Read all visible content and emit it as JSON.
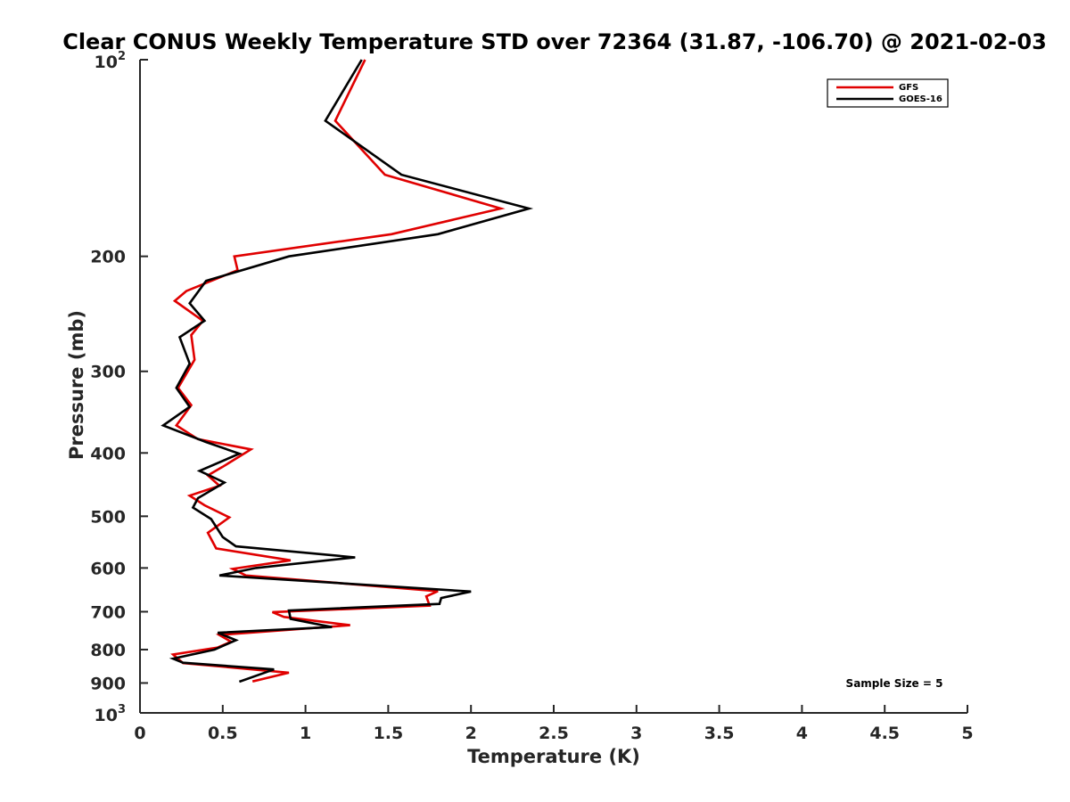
{
  "chart_data": {
    "type": "line",
    "title": "Clear CONUS Weekly Temperature STD over 72364 (31.87, -106.70) @ 2021-02-03",
    "xlabel": "Temperature (K)",
    "ylabel": "Pressure (mb)",
    "xlim": [
      0,
      5
    ],
    "ylim": [
      100,
      1000
    ],
    "y_scale": "log",
    "y_reversed": true,
    "x_ticks": [
      "0",
      "0.5",
      "1",
      "1.5",
      "2",
      "2.5",
      "3",
      "3.5",
      "4",
      "4.5",
      "5"
    ],
    "y_ticks": [
      {
        "value": 100,
        "base": "10",
        "exp": "2"
      },
      {
        "value": 200,
        "label": "200"
      },
      {
        "value": 300,
        "label": "300"
      },
      {
        "value": 400,
        "label": "400"
      },
      {
        "value": 500,
        "label": "500"
      },
      {
        "value": 600,
        "label": "600"
      },
      {
        "value": 700,
        "label": "700"
      },
      {
        "value": 800,
        "label": "800"
      },
      {
        "value": 900,
        "label": "900"
      },
      {
        "value": 1000,
        "base": "10",
        "exp": "3"
      }
    ],
    "grid": false,
    "legend_position": "top-right",
    "annotation": "Sample Size = 5",
    "series": [
      {
        "name": "GFS",
        "color": "#e00000",
        "points": [
          [
            1.36,
            100
          ],
          [
            1.18,
            124
          ],
          [
            1.48,
            150
          ],
          [
            2.18,
            169
          ],
          [
            1.52,
            185
          ],
          [
            0.57,
            200
          ],
          [
            0.59,
            210
          ],
          [
            0.28,
            226
          ],
          [
            0.21,
            234
          ],
          [
            0.38,
            251
          ],
          [
            0.31,
            264
          ],
          [
            0.33,
            288
          ],
          [
            0.23,
            318
          ],
          [
            0.31,
            338
          ],
          [
            0.22,
            363
          ],
          [
            0.35,
            381
          ],
          [
            0.67,
            395
          ],
          [
            0.5,
            420
          ],
          [
            0.41,
            433
          ],
          [
            0.48,
            449
          ],
          [
            0.3,
            465
          ],
          [
            0.39,
            481
          ],
          [
            0.54,
            502
          ],
          [
            0.41,
            530
          ],
          [
            0.46,
            560
          ],
          [
            0.91,
            584
          ],
          [
            0.56,
            602
          ],
          [
            0.64,
            616
          ],
          [
            1.8,
            651
          ],
          [
            1.73,
            663
          ],
          [
            1.75,
            685
          ],
          [
            0.8,
            701
          ],
          [
            0.87,
            713
          ],
          [
            1.27,
            734
          ],
          [
            0.48,
            760
          ],
          [
            0.55,
            778
          ],
          [
            0.47,
            794
          ],
          [
            0.2,
            814
          ],
          [
            0.26,
            839
          ],
          [
            0.9,
            868
          ],
          [
            0.68,
            895
          ]
        ]
      },
      {
        "name": "GOES-16",
        "color": "#000000",
        "points": [
          [
            1.34,
            100
          ],
          [
            1.12,
            124
          ],
          [
            1.58,
            150
          ],
          [
            2.35,
            169
          ],
          [
            1.8,
            185
          ],
          [
            0.9,
            200
          ],
          [
            0.4,
            218
          ],
          [
            0.3,
            236
          ],
          [
            0.39,
            251
          ],
          [
            0.24,
            266
          ],
          [
            0.3,
            292
          ],
          [
            0.22,
            318
          ],
          [
            0.3,
            340
          ],
          [
            0.14,
            363
          ],
          [
            0.4,
            385
          ],
          [
            0.6,
            401
          ],
          [
            0.36,
            426
          ],
          [
            0.51,
            444
          ],
          [
            0.35,
            469
          ],
          [
            0.32,
            485
          ],
          [
            0.43,
            505
          ],
          [
            0.5,
            538
          ],
          [
            0.58,
            556
          ],
          [
            1.3,
            578
          ],
          [
            0.7,
            600
          ],
          [
            0.48,
            616
          ],
          [
            2.0,
            652
          ],
          [
            1.82,
            667
          ],
          [
            1.81,
            681
          ],
          [
            0.9,
            697
          ],
          [
            0.91,
            718
          ],
          [
            1.16,
            739
          ],
          [
            0.47,
            754
          ],
          [
            0.58,
            774
          ],
          [
            0.45,
            800
          ],
          [
            0.2,
            826
          ],
          [
            0.26,
            838
          ],
          [
            0.81,
            858
          ],
          [
            0.6,
            896
          ]
        ]
      }
    ]
  }
}
